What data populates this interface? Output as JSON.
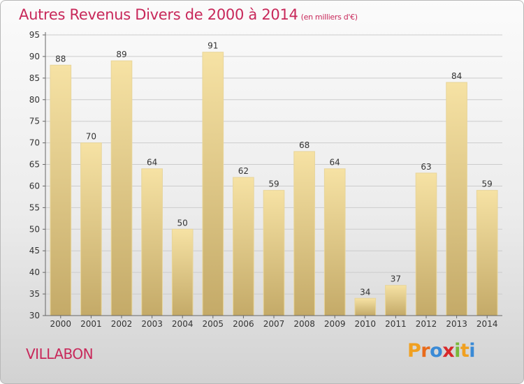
{
  "title": "Autres Revenus Divers de 2000 à 2014",
  "subtitle": "(en milliers d'€)",
  "town": "VILLABON",
  "brand": "Proxiti",
  "colors": {
    "title": "#c8285a",
    "bar_top": "#f6e2a4",
    "bar_bottom": "#c4aa68",
    "grid": "#cccccc"
  },
  "chart_data": {
    "type": "bar",
    "title": "Autres Revenus Divers de 2000 à 2014",
    "subtitle": "(en milliers d'€)",
    "xlabel": "",
    "ylabel": "",
    "ylim": [
      30,
      95
    ],
    "yticks": [
      30,
      35,
      40,
      45,
      50,
      55,
      60,
      65,
      70,
      75,
      80,
      85,
      90,
      95
    ],
    "grid": true,
    "categories": [
      "2000",
      "2001",
      "2002",
      "2003",
      "2004",
      "2005",
      "2006",
      "2007",
      "2008",
      "2009",
      "2010",
      "2011",
      "2012",
      "2013",
      "2014"
    ],
    "values": [
      88,
      70,
      89,
      64,
      50,
      91,
      62,
      59,
      68,
      64,
      34,
      37,
      63,
      84,
      59
    ]
  }
}
